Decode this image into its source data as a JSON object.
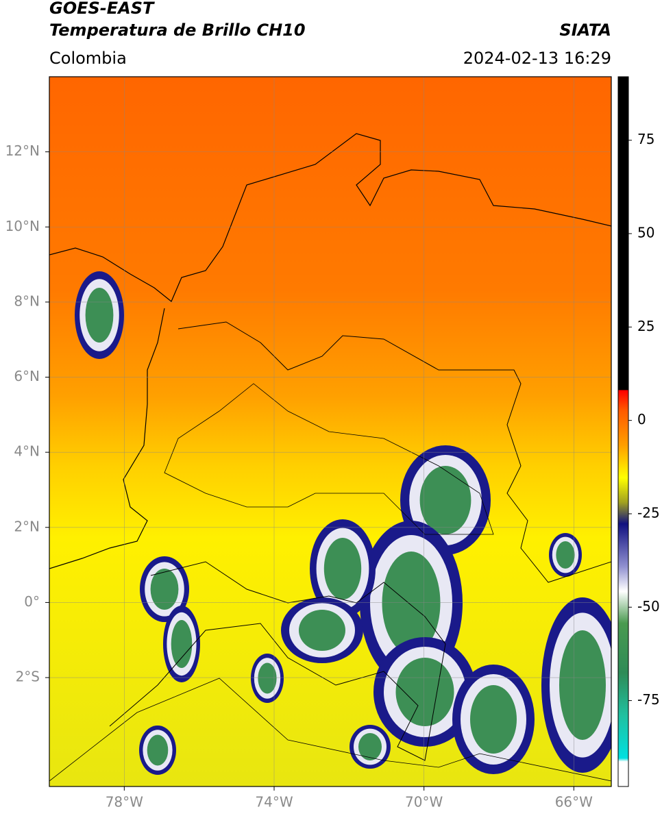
{
  "header": {
    "title": "GOES-EAST",
    "subtitle": "Temperatura de Brillo CH10",
    "region": "Colombia",
    "source": "SIATA",
    "timestamp": "2024-02-13 16:29"
  },
  "map": {
    "lonlim": [
      -80,
      -65
    ],
    "latlim": [
      -4.9,
      14
    ],
    "lonticks": [
      {
        "value": -78,
        "label": "78°W"
      },
      {
        "value": -74,
        "label": "74°W"
      },
      {
        "value": -70,
        "label": "70°W"
      },
      {
        "value": -66,
        "label": "66°W"
      }
    ],
    "latticks": [
      {
        "value": 12,
        "label": "12°N"
      },
      {
        "value": 10,
        "label": "10°N"
      },
      {
        "value": 8,
        "label": "8°N"
      },
      {
        "value": 6,
        "label": "6°N"
      },
      {
        "value": 4,
        "label": "4°N"
      },
      {
        "value": 2,
        "label": "2°N"
      },
      {
        "value": 0,
        "label": "0°"
      },
      {
        "value": -2,
        "label": "2°S"
      }
    ],
    "grid": true
  },
  "colorbar": {
    "lim": [
      -98,
      92
    ],
    "ticks": [
      75,
      50,
      25,
      0,
      -25,
      -50,
      -75
    ]
  }
}
